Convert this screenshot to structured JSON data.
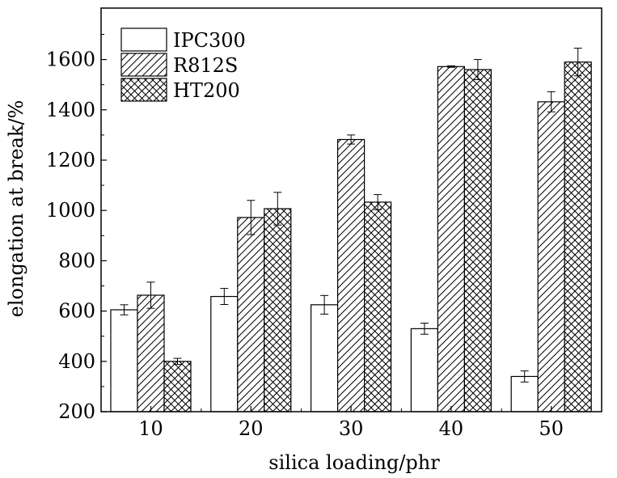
{
  "chart_data": {
    "type": "bar",
    "title": "",
    "xlabel": "silica loading/phr",
    "ylabel": "elongation at break/%",
    "categories": [
      "10",
      "20",
      "30",
      "40",
      "50"
    ],
    "ylim": [
      200,
      1750
    ],
    "yticks": [
      200,
      400,
      600,
      800,
      1000,
      1200,
      1400,
      1600
    ],
    "legend_position": "top-left",
    "grid": false,
    "series": [
      {
        "name": "IPC300",
        "pattern": "none",
        "values": [
          605,
          658,
          625,
          530,
          340
        ],
        "errors": [
          20,
          32,
          37,
          22,
          22
        ]
      },
      {
        "name": "R812S",
        "pattern": "diagonal",
        "values": [
          663,
          972,
          1282,
          1572,
          1432
        ],
        "errors": [
          52,
          68,
          18,
          3,
          40
        ]
      },
      {
        "name": "HT200",
        "pattern": "crosshatch",
        "values": [
          400,
          1007,
          1033,
          1560,
          1590
        ],
        "errors": [
          12,
          65,
          30,
          40,
          55
        ]
      }
    ]
  }
}
